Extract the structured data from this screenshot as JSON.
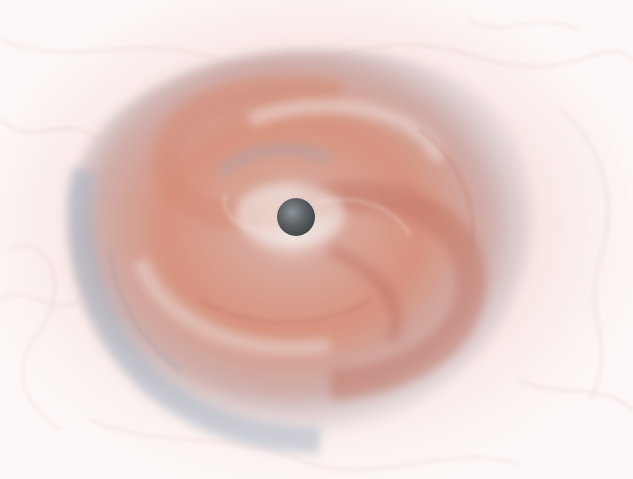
{
  "image": {
    "subject": "volumetric-swirl",
    "colors": {
      "background": "#fdf8f7",
      "outer_haze": "#e8b9b6",
      "wisps": "#c98d8d",
      "disk_warm": "#d98f78",
      "disk_deep": "#c0705f",
      "disk_cool": "#a9b4c2",
      "disk_pale": "#efe3df",
      "core_shadow": "#4f5458",
      "core_highlight": "#8d9499"
    }
  }
}
